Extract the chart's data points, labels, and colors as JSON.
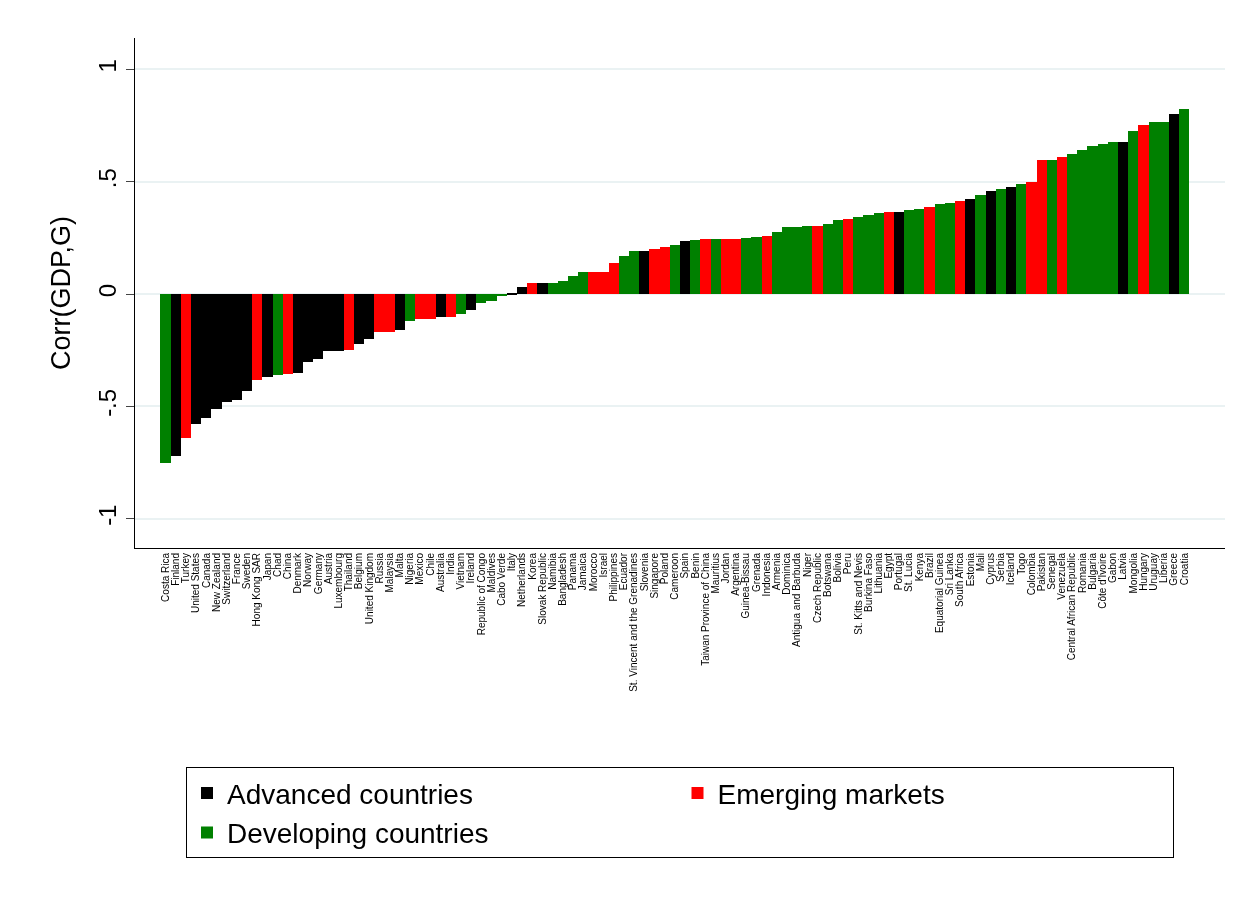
{
  "chart_data": {
    "type": "bar",
    "ylabel": "Corr(GDP,G)",
    "ylim": [
      -1.13,
      1.14
    ],
    "yticks": [
      {
        "value": -1,
        "label": "-1"
      },
      {
        "value": -0.5,
        "label": "-.5"
      },
      0,
      {
        "value": 0.5,
        "label": ".5"
      },
      1
    ],
    "grid": "y",
    "legend": "bottom",
    "categories": [
      "Costa Rica",
      "Finland",
      "Turkey",
      "United States",
      "Canada",
      "New Zealand",
      "Switzerland",
      "France",
      "Sweden",
      "Hong Kong SAR",
      "Japan",
      "Chad",
      "China",
      "Denmark",
      "Norway",
      "Germany",
      "Austria",
      "Luxembourg",
      "Thailand",
      "Belgium",
      "United Kingdom",
      "Russia",
      "Malaysia",
      "Malta",
      "Nigeria",
      "Mexico",
      "Chile",
      "Australia",
      "India",
      "Vietnam",
      "Ireland",
      "Republic of Congo",
      "Maldives",
      "Cabo Verde",
      "Italy",
      "Netherlands",
      "Korea",
      "Slovak Republic",
      "Namibia",
      "Bangladesh",
      "Panama",
      "Jamaica",
      "Morocco",
      "Israel",
      "Philippines",
      "Ecuador",
      "St. Vincent and the Grenadines",
      "Slovenia",
      "Singapore",
      "Poland",
      "Cameroon",
      "Spain",
      "Benin",
      "Taiwan Province of China",
      "Mauritius",
      "Jordan",
      "Argentina",
      "Guinea-Bissau",
      "Grenada",
      "Indonesia",
      "Armenia",
      "Dominica",
      "Antigua and Barbuda",
      "Niger",
      "Czech Republic",
      "Botswana",
      "Bolivia",
      "Peru",
      "St. Kitts and Nevis",
      "Burkina Faso",
      "Lithuania",
      "Egypt",
      "Portugal",
      "St. Lucia",
      "Kenya",
      "Brazil",
      "Equatorial Guinea",
      "Sri Lanka",
      "South Africa",
      "Estonia",
      "Mali",
      "Cyprus",
      "Serbia",
      "Iceland",
      "Togo",
      "Colombia",
      "Pakistan",
      "Senegal",
      "Venezuela",
      "Central African Republic",
      "Romania",
      "Bulgaria",
      "Côte d'Ivoire",
      "Gabon",
      "Latvia",
      "Mongolia",
      "Hungary",
      "Uruguay",
      "Liberia",
      "Greece",
      "Croatia"
    ],
    "series": [
      {
        "name": "Advanced countries",
        "color": "#000000",
        "values": [
          null,
          -0.72,
          null,
          -0.58,
          -0.55,
          -0.51,
          -0.48,
          -0.47,
          -0.43,
          null,
          -0.37,
          null,
          null,
          -0.35,
          -0.3,
          -0.29,
          -0.255,
          -0.255,
          null,
          -0.22,
          -0.2,
          null,
          null,
          -0.16,
          null,
          null,
          null,
          -0.1,
          null,
          null,
          -0.07,
          null,
          null,
          null,
          0.005,
          0.03,
          null,
          0.05,
          null,
          null,
          null,
          null,
          null,
          null,
          null,
          null,
          null,
          0.19,
          null,
          null,
          null,
          0.235,
          null,
          null,
          null,
          null,
          null,
          null,
          null,
          null,
          null,
          null,
          null,
          null,
          null,
          null,
          null,
          null,
          null,
          null,
          null,
          null,
          0.365,
          null,
          null,
          null,
          null,
          null,
          null,
          0.425,
          null,
          0.46,
          null,
          0.475,
          null,
          null,
          null,
          null,
          null,
          null,
          null,
          null,
          null,
          null,
          0.675,
          null,
          null,
          null,
          null,
          0.8,
          null
        ]
      },
      {
        "name": "Emerging markets",
        "color": "#ff0000",
        "values": [
          null,
          null,
          -0.64,
          null,
          null,
          null,
          null,
          null,
          null,
          -0.38,
          null,
          null,
          -0.355,
          null,
          null,
          null,
          null,
          null,
          -0.25,
          null,
          null,
          -0.17,
          -0.17,
          null,
          null,
          -0.11,
          -0.11,
          null,
          -0.1,
          null,
          null,
          null,
          null,
          null,
          null,
          null,
          0.05,
          null,
          null,
          null,
          null,
          null,
          0.1,
          0.1,
          0.14,
          null,
          null,
          null,
          0.2,
          0.21,
          null,
          null,
          null,
          0.245,
          null,
          0.245,
          0.245,
          null,
          null,
          0.26,
          null,
          null,
          null,
          null,
          0.305,
          null,
          null,
          0.335,
          null,
          null,
          null,
          0.365,
          null,
          null,
          null,
          0.39,
          null,
          null,
          0.415,
          null,
          null,
          null,
          null,
          null,
          null,
          0.5,
          0.595,
          null,
          0.61,
          null,
          null,
          null,
          null,
          null,
          null,
          null,
          0.755,
          null,
          null,
          null,
          null
        ]
      },
      {
        "name": "Developing countries",
        "color": "#008000",
        "values": [
          -0.75,
          null,
          null,
          null,
          null,
          null,
          null,
          null,
          null,
          null,
          null,
          -0.36,
          null,
          null,
          null,
          null,
          null,
          null,
          null,
          null,
          null,
          null,
          null,
          null,
          -0.12,
          null,
          null,
          null,
          null,
          -0.09,
          null,
          -0.04,
          -0.03,
          -0.005,
          null,
          null,
          null,
          null,
          0.05,
          0.06,
          0.08,
          0.1,
          null,
          null,
          null,
          0.17,
          0.19,
          null,
          null,
          null,
          0.22,
          null,
          0.24,
          null,
          0.245,
          null,
          null,
          0.25,
          0.255,
          null,
          0.275,
          0.3,
          0.3,
          0.305,
          null,
          0.31,
          0.33,
          null,
          0.345,
          0.35,
          0.36,
          null,
          null,
          0.375,
          0.38,
          null,
          0.4,
          0.405,
          null,
          null,
          0.44,
          null,
          0.47,
          null,
          0.49,
          null,
          null,
          0.595,
          null,
          0.625,
          0.64,
          0.66,
          0.67,
          0.675,
          null,
          0.725,
          null,
          0.765,
          0.765,
          null,
          0.825
        ]
      }
    ]
  }
}
